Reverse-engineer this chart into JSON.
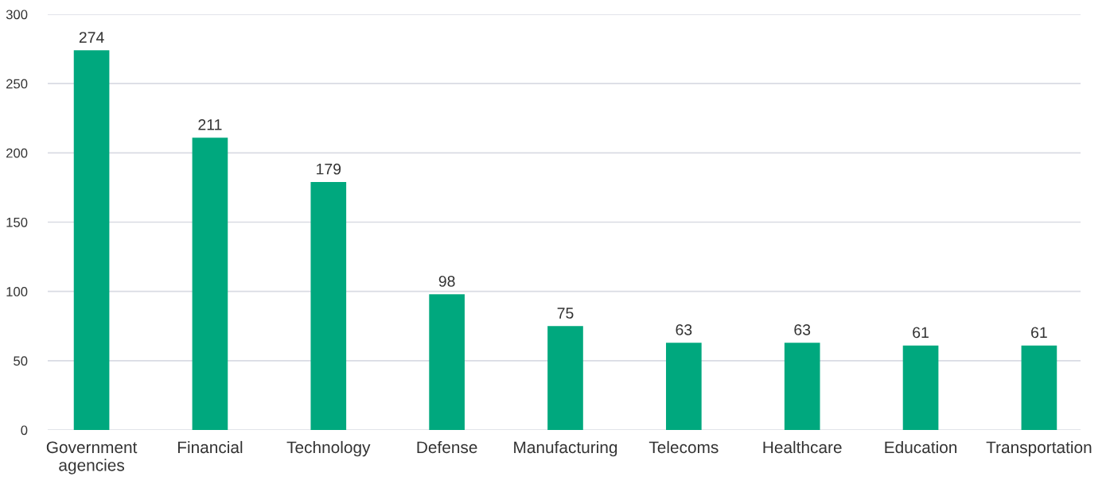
{
  "chart_data": {
    "type": "bar",
    "categories": [
      "Government\nagencies",
      "Financial",
      "Technology",
      "Defense",
      "Manufacturing",
      "Telecoms",
      "Healthcare",
      "Education",
      "Transportation"
    ],
    "values": [
      274,
      211,
      179,
      98,
      75,
      63,
      63,
      61,
      61
    ],
    "color": "#00a87e",
    "ylim": [
      0,
      300
    ],
    "yticks": [
      0,
      50,
      100,
      150,
      200,
      250,
      300
    ],
    "grid": "y",
    "data_labels": true
  }
}
